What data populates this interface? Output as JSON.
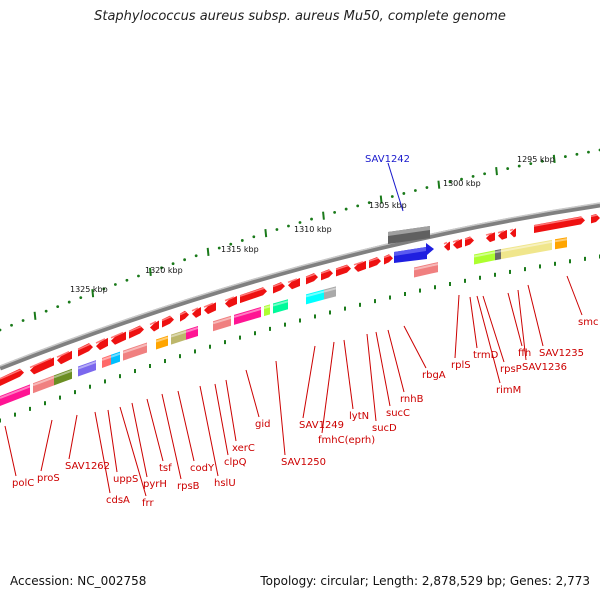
{
  "title": "Staphylococcus aureus subsp. aureus Mu50, complete genome",
  "accession": "Accession: NC_002758",
  "summary": "Topology: circular; Length: 2,878,529 bp; Genes: 2,773",
  "colors": {
    "forward_gene": "#ee1111",
    "reverse_gene": "#ee1111",
    "highlight_gene": "#1f1fe0",
    "backbone": "#808080",
    "tick": "#1a7a1a",
    "label": "#cc0000"
  },
  "scale_labels": [
    "1295 kbp",
    "1300 kbp",
    "1305 kbp",
    "1310 kbp",
    "1315 kbp",
    "1320 kbp",
    "1325 kbp"
  ],
  "highlight_label": "SAV1242",
  "gene_labels": [
    "smc",
    "SAV1235",
    "SAV1236",
    "ffh",
    "rpsP",
    "rimM",
    "trmD",
    "rplS",
    "rbgA",
    "rnhB",
    "sucC",
    "sucD",
    "lytN",
    "fmhC(eprh)",
    "SAV1249",
    "SAV1250",
    "gid",
    "xerC",
    "clpQ",
    "hslU",
    "codY",
    "rpsB",
    "tsf",
    "pyrH",
    "frr",
    "uppS",
    "cdsA",
    "SAV1262",
    "proS",
    "polC"
  ]
}
